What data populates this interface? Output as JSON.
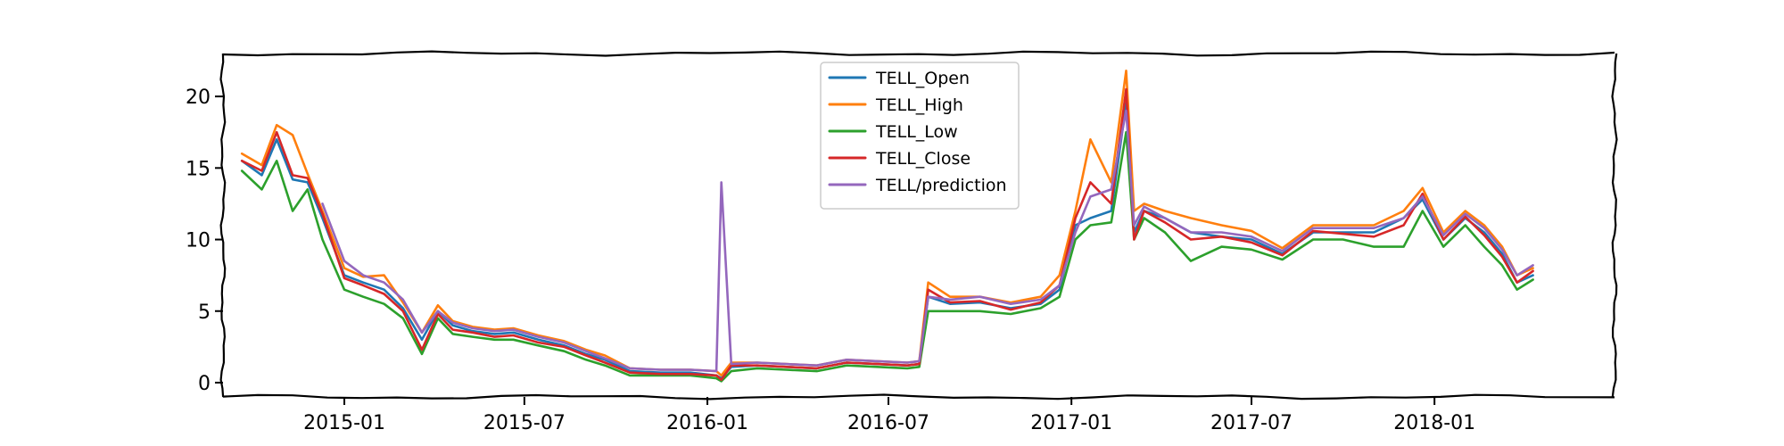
{
  "chart_data": {
    "type": "line",
    "title": "",
    "xlabel": "",
    "ylabel": "",
    "x_tick_labels": [
      "2015-01",
      "2015-07",
      "2016-01",
      "2016-07",
      "2017-01",
      "2017-07",
      "2018-01"
    ],
    "y_tick_labels": [
      "0",
      "5",
      "10",
      "15",
      "20"
    ],
    "y_ticks": [
      0,
      5,
      10,
      15,
      20
    ],
    "xlim": [
      "2014-09-01",
      "2018-07-01"
    ],
    "ylim": [
      -1,
      23
    ],
    "grid": false,
    "legend_position": "upper center",
    "x": [
      "2014-09-20",
      "2014-10-10",
      "2014-10-25",
      "2014-11-10",
      "2014-11-25",
      "2014-12-10",
      "2015-01-01",
      "2015-01-20",
      "2015-02-10",
      "2015-03-01",
      "2015-03-20",
      "2015-04-05",
      "2015-04-20",
      "2015-05-10",
      "2015-06-01",
      "2015-06-20",
      "2015-07-15",
      "2015-08-10",
      "2015-09-01",
      "2015-09-20",
      "2015-10-15",
      "2015-11-15",
      "2015-12-15",
      "2016-01-10",
      "2016-01-15",
      "2016-01-25",
      "2016-02-20",
      "2016-03-20",
      "2016-04-20",
      "2016-05-20",
      "2016-06-20",
      "2016-07-20",
      "2016-08-01",
      "2016-08-10",
      "2016-09-01",
      "2016-10-01",
      "2016-11-01",
      "2016-12-01",
      "2016-12-20",
      "2017-01-05",
      "2017-01-20",
      "2017-02-10",
      "2017-02-25",
      "2017-03-05",
      "2017-03-15",
      "2017-04-05",
      "2017-05-01",
      "2017-06-01",
      "2017-07-01",
      "2017-08-01",
      "2017-09-01",
      "2017-10-01",
      "2017-11-01",
      "2017-12-01",
      "2017-12-20",
      "2018-01-10",
      "2018-02-01",
      "2018-02-20",
      "2018-03-10",
      "2018-03-25",
      "2018-04-10"
    ],
    "series": [
      {
        "name": "TELL_Open",
        "color": "#1f77b4",
        "values": [
          15.5,
          14.5,
          17.0,
          14.2,
          14.0,
          11.5,
          7.5,
          7.0,
          6.5,
          5.2,
          3.0,
          5.0,
          4.0,
          3.6,
          3.4,
          3.5,
          3.0,
          2.6,
          2.0,
          1.6,
          0.8,
          0.7,
          0.7,
          0.5,
          0.3,
          1.1,
          1.2,
          1.1,
          1.0,
          1.4,
          1.3,
          1.2,
          1.3,
          6.0,
          5.5,
          5.6,
          5.2,
          5.5,
          6.5,
          11.0,
          11.5,
          12.0,
          19.5,
          10.5,
          12.0,
          11.5,
          10.5,
          10.2,
          10.0,
          9.0,
          10.5,
          10.5,
          10.5,
          11.5,
          12.8,
          10.0,
          11.5,
          10.5,
          9.0,
          7.0,
          7.5
        ]
      },
      {
        "name": "TELL_High",
        "color": "#ff7f0e",
        "values": [
          16.0,
          15.2,
          18.0,
          17.3,
          14.6,
          12.0,
          8.0,
          7.4,
          7.5,
          5.6,
          3.5,
          5.4,
          4.3,
          3.9,
          3.7,
          3.8,
          3.3,
          2.9,
          2.3,
          1.9,
          1.0,
          0.9,
          0.9,
          0.8,
          0.5,
          1.4,
          1.4,
          1.3,
          1.2,
          1.6,
          1.5,
          1.4,
          1.5,
          7.0,
          6.0,
          6.0,
          5.6,
          6.0,
          7.5,
          12.0,
          17.0,
          14.0,
          21.8,
          12.0,
          12.5,
          12.0,
          11.5,
          11.0,
          10.6,
          9.4,
          11.0,
          11.0,
          11.0,
          12.0,
          13.6,
          10.5,
          12.0,
          11.0,
          9.5,
          7.5,
          8.0
        ]
      },
      {
        "name": "TELL_Low",
        "color": "#2ca02c",
        "values": [
          14.8,
          13.5,
          15.5,
          12.0,
          13.5,
          10.0,
          6.5,
          6.0,
          5.5,
          4.5,
          2.0,
          4.5,
          3.4,
          3.2,
          3.0,
          3.0,
          2.6,
          2.2,
          1.6,
          1.2,
          0.5,
          0.5,
          0.5,
          0.3,
          0.1,
          0.8,
          1.0,
          0.9,
          0.8,
          1.2,
          1.1,
          1.0,
          1.1,
          5.0,
          5.0,
          5.0,
          4.8,
          5.2,
          6.0,
          10.0,
          11.0,
          11.2,
          17.5,
          10.0,
          11.5,
          10.5,
          8.5,
          9.5,
          9.3,
          8.6,
          10.0,
          10.0,
          9.5,
          9.5,
          12.0,
          9.5,
          11.0,
          9.5,
          8.2,
          6.5,
          7.2
        ]
      },
      {
        "name": "TELL_Close",
        "color": "#d62728",
        "values": [
          15.5,
          14.8,
          17.5,
          14.5,
          14.3,
          11.8,
          7.3,
          6.8,
          6.2,
          5.0,
          2.3,
          4.8,
          3.7,
          3.5,
          3.2,
          3.3,
          2.8,
          2.5,
          1.9,
          1.4,
          0.7,
          0.6,
          0.6,
          0.5,
          0.2,
          1.2,
          1.2,
          1.1,
          1.0,
          1.4,
          1.3,
          1.2,
          1.3,
          6.5,
          5.6,
          5.7,
          5.1,
          5.6,
          6.8,
          11.5,
          14.0,
          12.5,
          20.5,
          10.0,
          12.0,
          11.2,
          10.0,
          10.2,
          9.8,
          8.9,
          10.6,
          10.4,
          10.2,
          11.0,
          13.2,
          10.0,
          11.6,
          10.3,
          8.8,
          7.0,
          7.8
        ]
      },
      {
        "name": "TELL/prediction",
        "color": "#9467bd",
        "values": [
          null,
          null,
          null,
          null,
          null,
          12.5,
          8.5,
          7.5,
          7.0,
          5.8,
          3.5,
          5.0,
          4.2,
          3.8,
          3.6,
          3.7,
          3.2,
          2.8,
          2.2,
          1.7,
          1.0,
          0.9,
          0.9,
          0.8,
          14.0,
          1.3,
          1.4,
          1.3,
          1.2,
          1.6,
          1.5,
          1.4,
          1.5,
          6.0,
          5.8,
          6.0,
          5.5,
          5.8,
          6.8,
          10.5,
          13.0,
          13.5,
          19.0,
          11.0,
          12.3,
          11.5,
          10.5,
          10.5,
          10.2,
          9.2,
          10.8,
          10.8,
          10.8,
          11.5,
          13.0,
          10.3,
          11.8,
          10.8,
          9.3,
          7.5,
          8.2
        ]
      }
    ]
  }
}
